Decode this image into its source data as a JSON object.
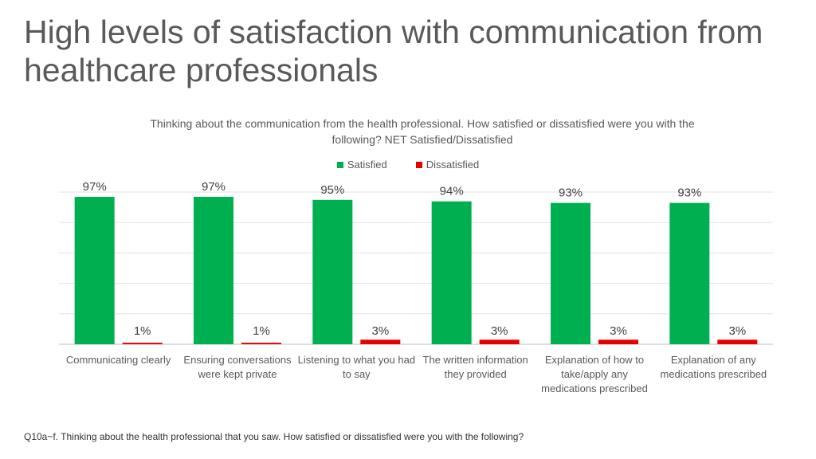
{
  "slide": {
    "title": "High levels of satisfaction with communication from healthcare professionals",
    "footnote": "Q10a~f. Thinking about the health professional that you saw. How satisfied or dissatisfied were you with the following?"
  },
  "chart_data": {
    "type": "bar",
    "title": "Thinking about the communication from the health professional. How satisfied or dissatisfied were you with the following? NET Satisfied/Dissatisfied",
    "categories": [
      "Communicating clearly",
      "Ensuring conversations were kept private",
      "Listening to what you had to say",
      "The written information they provided",
      "Explanation of how to take/apply any medications prescribed",
      "Explanation of any medications prescribed"
    ],
    "series": [
      {
        "name": "Satisfied",
        "color": "#00b050",
        "values": [
          97,
          97,
          95,
          94,
          93,
          93
        ],
        "labels": [
          "97%",
          "97%",
          "95%",
          "94%",
          "93%",
          "93%"
        ]
      },
      {
        "name": "Dissatisfied",
        "color": "#e60000",
        "values": [
          1,
          1,
          3,
          3,
          3,
          3
        ],
        "labels": [
          "1%",
          "1%",
          "3%",
          "3%",
          "3%",
          "3%"
        ]
      }
    ],
    "ylim": [
      0,
      100
    ],
    "grid": true,
    "legend": "top-center",
    "data_labels": true
  }
}
